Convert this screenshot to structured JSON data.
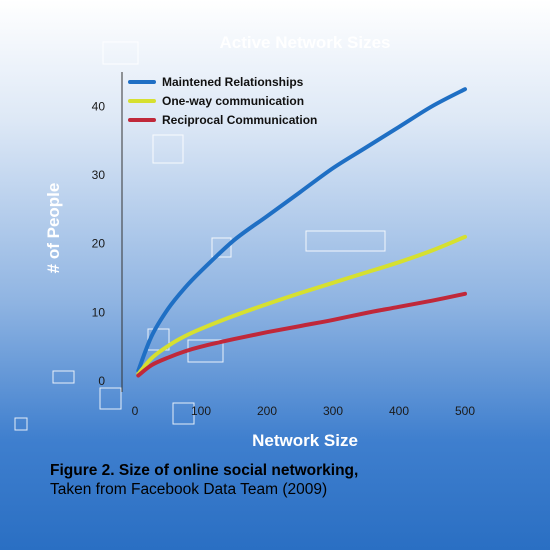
{
  "chart_data": {
    "type": "line",
    "title": "Active Network Sizes",
    "xlabel": "Network Size",
    "ylabel": "# of People",
    "xlim": [
      0,
      510
    ],
    "ylim": [
      0,
      45
    ],
    "x_ticks": [
      0,
      100,
      200,
      300,
      400,
      500
    ],
    "y_ticks": [
      0,
      10,
      20,
      30,
      40
    ],
    "grid": false,
    "legend_position": "top-left",
    "series": [
      {
        "name": "Maintened Relationships",
        "color": "#1f6fc4",
        "x": [
          5,
          25,
          50,
          75,
          100,
          150,
          200,
          250,
          300,
          350,
          400,
          450,
          500
        ],
        "y": [
          1.5,
          6.5,
          10.5,
          13.5,
          16,
          20.5,
          24,
          27.5,
          31,
          34,
          37,
          40,
          42.5
        ]
      },
      {
        "name": "One-way communication",
        "color": "#d6e030",
        "x": [
          5,
          25,
          50,
          75,
          100,
          150,
          200,
          250,
          300,
          350,
          400,
          450,
          500
        ],
        "y": [
          1,
          3.3,
          5.1,
          6.5,
          7.6,
          9.5,
          11.2,
          12.8,
          14.3,
          15.8,
          17.3,
          19,
          21
        ]
      },
      {
        "name": "Reciprocal Communication",
        "color": "#c0283a",
        "x": [
          5,
          25,
          50,
          75,
          100,
          150,
          200,
          250,
          300,
          350,
          400,
          450,
          500
        ],
        "y": [
          0.8,
          2.3,
          3.4,
          4.3,
          5,
          6.1,
          7.1,
          8,
          8.9,
          9.9,
          10.8,
          11.7,
          12.7
        ]
      }
    ]
  },
  "caption": {
    "line1": "Figure 2. Size of online social networking,",
    "line2": "Taken from Facebook Data Team (2009)"
  }
}
